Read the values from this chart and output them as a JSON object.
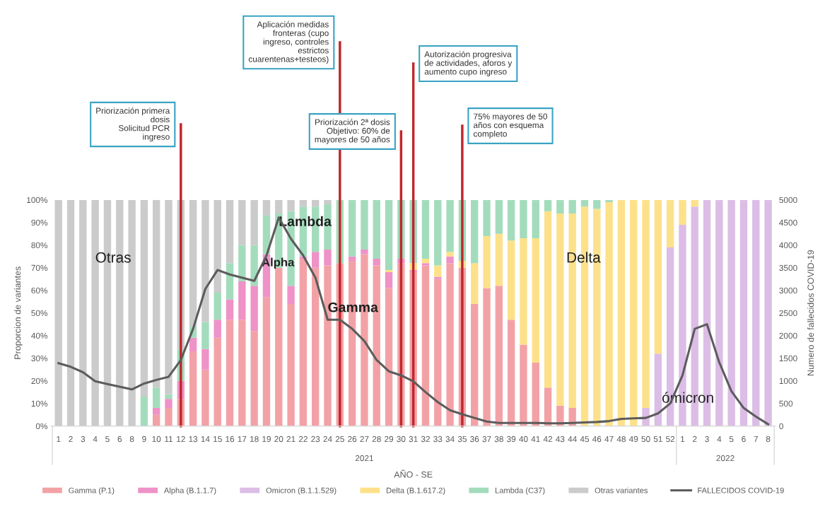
{
  "chart_data": {
    "type": "bar",
    "stacked": true,
    "xlabel": "AÑO - SE",
    "ylabel": "Proporcion de variantes",
    "y2label": "Numero de fallecidos COVID-19",
    "categories": [
      "1",
      "2",
      "3",
      "4",
      "5",
      "6",
      "8",
      "9",
      "10",
      "11",
      "12",
      "13",
      "14",
      "15",
      "16",
      "17",
      "18",
      "19",
      "20",
      "21",
      "22",
      "23",
      "24",
      "25",
      "26",
      "27",
      "28",
      "29",
      "30",
      "31",
      "32",
      "33",
      "34",
      "35",
      "36",
      "37",
      "38",
      "39",
      "40",
      "41",
      "42",
      "43",
      "44",
      "45",
      "46",
      "47",
      "48",
      "49",
      "50",
      "51",
      "52",
      "1",
      "2",
      "3",
      "4",
      "5",
      "6",
      "7",
      "8"
    ],
    "series": [
      {
        "name": "Gamma (P.1)",
        "color": "#f2a2a6",
        "values": [
          0,
          0,
          0,
          0,
          0,
          0,
          0,
          0,
          5,
          8,
          12,
          33,
          25,
          39,
          47,
          47,
          42,
          57,
          70,
          54,
          74,
          70,
          71,
          72,
          73,
          76,
          71,
          61,
          72,
          68,
          71,
          65,
          72,
          70,
          54,
          61,
          62,
          47,
          36,
          28,
          17,
          9,
          8,
          0,
          0,
          0,
          0,
          0,
          0,
          0,
          0,
          0,
          0,
          0,
          0,
          0,
          0,
          0,
          0
        ]
      },
      {
        "name": "Alpha (B.1.1.7)",
        "color": "#ee92c8",
        "values": [
          0,
          0,
          0,
          0,
          0,
          0,
          0,
          0,
          3,
          4,
          8,
          6,
          9,
          8,
          9,
          17,
          20,
          19,
          0,
          8,
          1,
          7,
          7,
          0,
          2,
          2,
          3,
          7,
          2,
          1,
          1,
          1,
          3,
          0,
          0,
          0,
          0,
          0,
          0,
          0,
          0,
          0,
          0,
          0,
          0,
          0,
          0,
          0,
          0,
          0,
          0,
          0,
          0,
          0,
          0,
          0,
          0,
          0,
          0
        ]
      },
      {
        "name": "Omicron (B.1.1.529)",
        "color": "#dcbde6",
        "values": [
          0,
          0,
          0,
          0,
          0,
          0,
          0,
          0,
          0,
          0,
          0,
          0,
          0,
          0,
          0,
          0,
          0,
          0,
          0,
          0,
          0,
          0,
          0,
          0,
          0,
          0,
          0,
          0,
          0,
          0,
          0,
          0,
          0,
          0,
          0,
          0,
          0,
          0,
          0,
          0,
          0,
          0,
          0,
          0,
          0,
          0,
          0,
          0,
          8,
          32,
          79,
          89,
          97,
          100,
          100,
          100,
          100,
          100,
          100
        ]
      },
      {
        "name": "Delta (B.1.617.2)",
        "color": "#fde18a",
        "values": [
          0,
          0,
          0,
          0,
          0,
          0,
          0,
          0,
          0,
          0,
          0,
          0,
          0,
          0,
          0,
          0,
          0,
          0,
          0,
          0,
          0,
          0,
          0,
          0,
          0,
          0,
          0,
          1,
          0,
          3,
          2,
          5,
          2,
          3,
          18,
          23,
          23,
          35,
          47,
          55,
          78,
          85,
          86,
          97,
          96,
          99,
          100,
          100,
          92,
          68,
          21,
          11,
          3,
          0,
          0,
          0,
          0,
          0,
          0
        ]
      },
      {
        "name": "Lambda (C37)",
        "color": "#a3dcbc",
        "values": [
          0,
          0,
          0,
          0,
          0,
          0,
          0,
          13,
          9,
          2,
          14,
          5,
          12,
          12,
          16,
          16,
          18,
          17,
          24,
          33,
          22,
          20,
          20,
          28,
          25,
          22,
          26,
          31,
          26,
          28,
          26,
          29,
          23,
          27,
          28,
          16,
          15,
          18,
          17,
          17,
          5,
          6,
          6,
          3,
          4,
          1,
          0,
          0,
          0,
          0,
          0,
          0,
          0,
          0,
          0,
          0,
          0,
          0,
          0
        ]
      },
      {
        "name": "Otras variantes",
        "color": "#cbcbcb",
        "values": [
          100,
          100,
          100,
          100,
          100,
          100,
          100,
          87,
          83,
          86,
          66,
          56,
          54,
          41,
          28,
          20,
          20,
          7,
          6,
          5,
          3,
          3,
          2,
          0,
          0,
          0,
          0,
          0,
          0,
          0,
          0,
          0,
          0,
          0,
          0,
          0,
          0,
          0,
          0,
          0,
          0,
          0,
          0,
          0,
          0,
          0,
          0,
          0,
          0,
          0,
          0,
          0,
          0,
          0,
          0,
          0,
          0,
          0,
          0
        ]
      },
      {
        "name": "FALLECIDOS COVID-19",
        "type": "line",
        "axis": "y2",
        "color": "#5c5c5c",
        "values": [
          1390,
          1310,
          1190,
          990,
          930,
          870,
          810,
          940,
          1020,
          1090,
          1460,
          2150,
          3030,
          3450,
          3350,
          3280,
          3210,
          3770,
          4610,
          4140,
          3770,
          3280,
          2350,
          2350,
          2150,
          1880,
          1460,
          1210,
          1120,
          990,
          750,
          530,
          350,
          260,
          180,
          100,
          70,
          70,
          70,
          70,
          60,
          60,
          70,
          80,
          90,
          110,
          160,
          170,
          180,
          280,
          500,
          1120,
          2150,
          2250,
          1410,
          770,
          400,
          210,
          40
        ]
      }
    ],
    "ylim": [
      0,
      100
    ],
    "yticks": [
      {
        "value": 0,
        "label": "0%"
      },
      {
        "value": 10,
        "label": "10%"
      },
      {
        "value": 20,
        "label": "20%"
      },
      {
        "value": 30,
        "label": "30%"
      },
      {
        "value": 40,
        "label": "40%"
      },
      {
        "value": 50,
        "label": "50%"
      },
      {
        "value": 60,
        "label": "60%"
      },
      {
        "value": 70,
        "label": "70%"
      },
      {
        "value": 80,
        "label": "80%"
      },
      {
        "value": 90,
        "label": "90%"
      },
      {
        "value": 100,
        "label": "100%"
      }
    ],
    "y2lim": [
      0,
      5000
    ],
    "y2ticks": [
      0,
      500,
      1000,
      1500,
      2000,
      2500,
      3000,
      3500,
      4000,
      4500,
      5000
    ],
    "ref_lines": [
      {
        "axis": "x",
        "value": "12",
        "color": "#c0272d",
        "label": "Priorización primera\ndosis\nSolicitud PCR\ningreso"
      },
      {
        "axis": "x",
        "value": "25",
        "color": "#c0272d",
        "label": "Aplicación medidas\nfronteras (cupo\ningreso, controles\nestrictos\ncuarentenas+testeos)"
      },
      {
        "axis": "x",
        "value": "30",
        "color": "#c0272d",
        "label": "Priorización 2ª dosis\nObjetivo: 60% de\nmayores de 50 años"
      },
      {
        "axis": "x",
        "value": "31",
        "color": "#c0272d",
        "label": "Autorización progresiva\nde actividades, aforos y\naumento cupo ingreso"
      },
      {
        "axis": "x",
        "value": "35",
        "color": "#c0272d",
        "label": "75% mayores de 50\naños con esquema\ncompleto"
      }
    ],
    "annotations": [
      "2021",
      "2022",
      "Otras",
      "Alpha",
      "Delta",
      "ómicron",
      {
        "text": "Lambda",
        "x": "20",
        "y": 90
      },
      {
        "text": "Gamma",
        "x": "24",
        "y": 52
      }
    ],
    "legend": "bottom"
  }
}
